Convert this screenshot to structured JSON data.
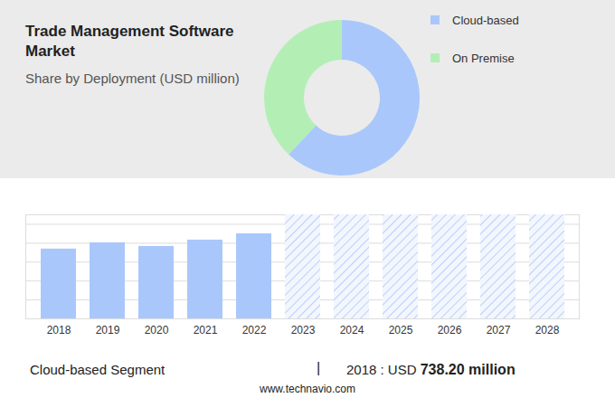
{
  "chart_data": [
    {
      "type": "pie",
      "title": "Trade Management Software Market",
      "subtitle": "Share by Deployment (USD million)",
      "categories": [
        "Cloud-based",
        "On Premise"
      ],
      "values": [
        62,
        38
      ],
      "colors": [
        "#a9c7fb",
        "#b3efb5"
      ],
      "legend": "right"
    },
    {
      "type": "bar",
      "categories": [
        "2018",
        "2019",
        "2020",
        "2021",
        "2022",
        "2023",
        "2024",
        "2025",
        "2026",
        "2027",
        "2028"
      ],
      "values": [
        738.2,
        804,
        766,
        833,
        899,
        null,
        null,
        null,
        null,
        null,
        null
      ],
      "color": "#a9c7fb",
      "ylim": [
        0,
        1100
      ],
      "yticks": [
        0,
        200,
        400,
        600,
        800,
        1000
      ],
      "grid": true,
      "tick_labels": "x",
      "annotations": [
        "Cloud-based Segment",
        "|",
        "2018 : USD",
        "738.20 million",
        "www.technavio.com"
      ]
    }
  ]
}
